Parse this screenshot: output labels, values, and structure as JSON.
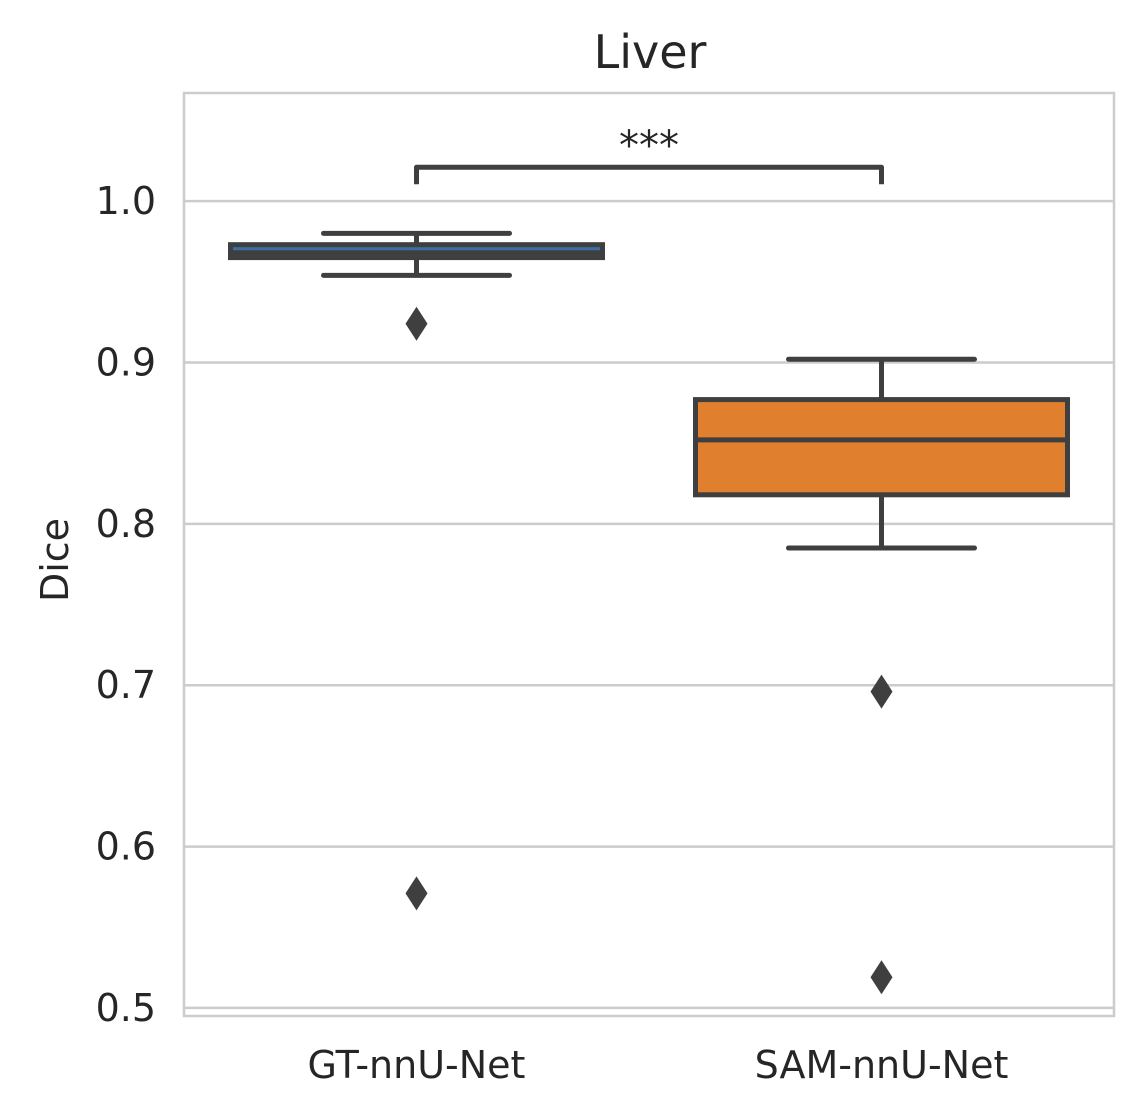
{
  "chart_data": {
    "type": "box",
    "title": "Liver",
    "xlabel": "",
    "ylabel": "Dice",
    "categories": [
      "GT-nnU-Net",
      "SAM-nnU-Net"
    ],
    "ylim": [
      0.495,
      1.067
    ],
    "yticks": [
      0.5,
      0.6,
      0.7,
      0.8,
      0.9,
      1.0
    ],
    "ytick_labels": [
      "0.5",
      "0.6",
      "0.7",
      "0.8",
      "0.9",
      "1.0"
    ],
    "grid": "horizontal",
    "boxes": [
      {
        "category": "GT-nnU-Net",
        "whisker_low": 0.954,
        "q1": 0.965,
        "median": 0.968,
        "q3": 0.973,
        "whisker_high": 0.98,
        "outliers": [
          0.924,
          0.571
        ],
        "color": "#3a6ea5"
      },
      {
        "category": "SAM-nnU-Net",
        "whisker_low": 0.785,
        "q1": 0.818,
        "median": 0.852,
        "q3": 0.877,
        "whisker_high": 0.902,
        "outliers": [
          0.696,
          0.519
        ],
        "color": "#e0802e"
      }
    ],
    "significance": {
      "from": "GT-nnU-Net",
      "to": "SAM-nnU-Net",
      "label": "***",
      "y": 1.021
    },
    "colors": {
      "edge": "#3f3f3f",
      "grid": "#cccccc",
      "spine": "#cccccc"
    }
  }
}
